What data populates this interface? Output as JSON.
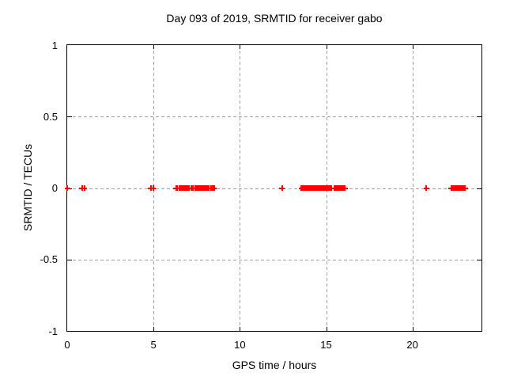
{
  "title": "Day 093 of 2019, SRMTID for receiver gabo",
  "chart_data": {
    "type": "scatter",
    "title": "Day 093 of 2019, SRMTID for receiver gabo",
    "xlabel": "GPS time / hours",
    "ylabel": "SRMTID / TECUs",
    "xlim": [
      0,
      24
    ],
    "ylim": [
      -1,
      1
    ],
    "xticks": [
      0,
      5,
      10,
      15,
      20
    ],
    "yticks": [
      1,
      0.5,
      0,
      -0.5,
      -1
    ],
    "grid": true,
    "legend": "none",
    "marker": "plus",
    "marker_color": "#ff0000",
    "grid_color": "#a0a0a0",
    "series": [
      {
        "name": "SRMTID",
        "y_constant": 0,
        "x": [
          0.02,
          0.85,
          1.0,
          4.84,
          4.97,
          6.3,
          6.37,
          6.52,
          6.57,
          6.62,
          6.67,
          6.72,
          6.77,
          6.82,
          6.87,
          6.92,
          6.97,
          7.02,
          7.07,
          7.18,
          7.3,
          7.42,
          7.5,
          7.62,
          7.67,
          7.72,
          7.77,
          7.82,
          7.87,
          7.92,
          7.97,
          8.02,
          8.07,
          8.12,
          8.22,
          8.32,
          8.42,
          8.5,
          12.45,
          13.56,
          13.63,
          13.7,
          13.77,
          13.84,
          13.91,
          13.98,
          14.05,
          14.12,
          14.19,
          14.26,
          14.33,
          14.4,
          14.47,
          14.54,
          14.61,
          14.68,
          14.75,
          14.82,
          14.89,
          14.96,
          15.03,
          15.1,
          15.17,
          15.24,
          15.3,
          15.47,
          15.55,
          15.6,
          15.65,
          15.7,
          15.75,
          15.8,
          15.85,
          15.9,
          16.0,
          16.08,
          20.8,
          22.25,
          22.35,
          22.45,
          22.52,
          22.58,
          22.64,
          22.7,
          22.76,
          22.82,
          22.9,
          23.0,
          23.06
        ]
      }
    ]
  }
}
